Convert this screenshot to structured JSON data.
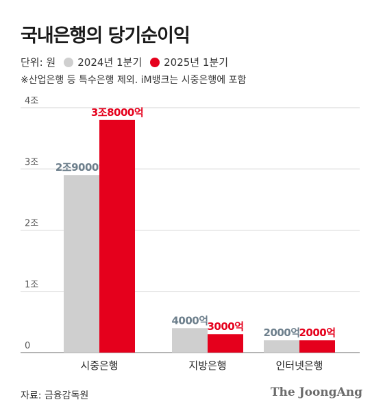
{
  "title": "국내은행의 당기순이익",
  "legend": {
    "unit_label": "단위: 원",
    "items": [
      {
        "label": "2024년 1분기",
        "color": "#cfcfcf"
      },
      {
        "label": "2025년 1분기",
        "color": "#e5001c"
      }
    ]
  },
  "note": "※산업은행 등 특수은행 제외. iM뱅크는 시중은행에 포함",
  "source": "자료: 금융감독원",
  "brand": "The JoongAng",
  "chart_data": {
    "type": "bar",
    "categories": [
      "시중은행",
      "지방은행",
      "인터넷은행"
    ],
    "series": [
      {
        "name": "2024년 1분기",
        "values": [
          2.9,
          0.4,
          0.2
        ],
        "labels": [
          "2조9000억",
          "4000억",
          "2000억"
        ],
        "color": "#cfcfcf",
        "label_color": "#6d7f8c"
      },
      {
        "name": "2025년 1분기",
        "values": [
          3.8,
          0.3,
          0.2
        ],
        "labels": [
          "3조8000억",
          "3000억",
          "2000억"
        ],
        "color": "#e5001c",
        "label_color": "#e5001c"
      }
    ],
    "ylim": [
      0,
      4
    ],
    "yticks": [
      0,
      1,
      2,
      3,
      4
    ],
    "ytick_labels": [
      "0",
      "1조",
      "2조",
      "3조",
      "4조"
    ],
    "grid": true
  }
}
